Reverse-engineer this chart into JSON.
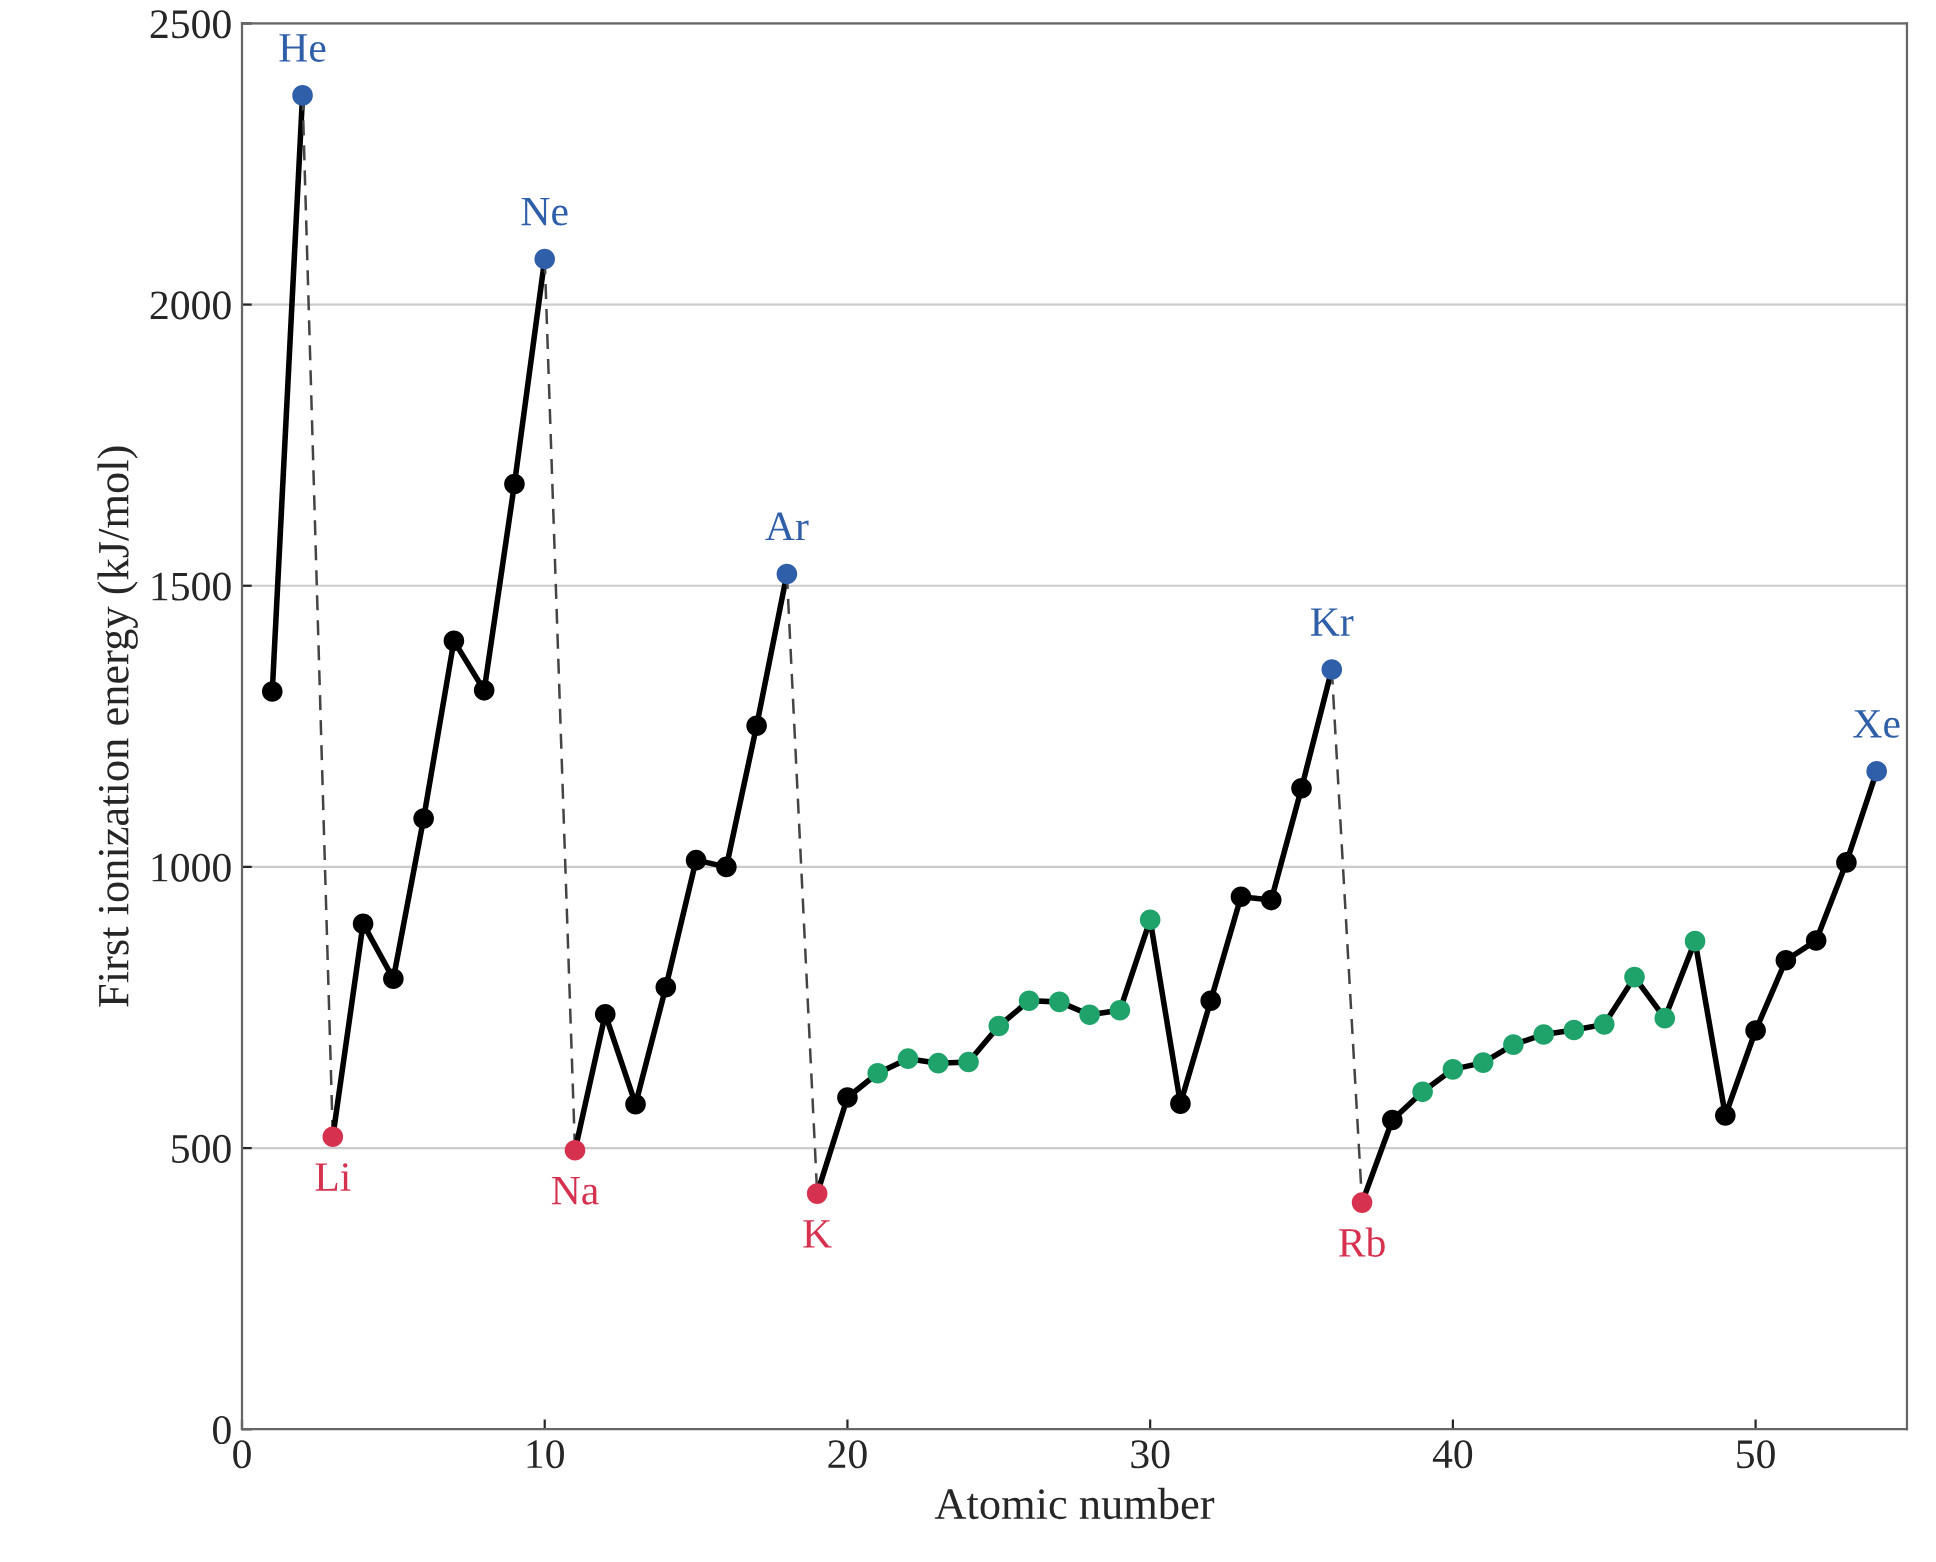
{
  "chart_data": {
    "type": "line",
    "xlabel": "Atomic number",
    "ylabel": "First ionization energy (kJ/mol)",
    "xlim": [
      0,
      55
    ],
    "xticks": [
      0,
      10,
      20,
      30,
      40,
      50
    ],
    "ylim": [
      0,
      2500
    ],
    "yticks": [
      0,
      500,
      1000,
      1500,
      2000,
      2500
    ],
    "grid": "y",
    "marker": "circle",
    "series": [
      {
        "color": "#000000",
        "x": [
          1,
          2
        ],
        "values": [
          1312,
          2372
        ],
        "colors": [
          "#000000",
          "#2e5fa8"
        ]
      },
      {
        "color": "#444444",
        "line_style": "dashed",
        "marker": "none",
        "x": [
          2,
          3
        ],
        "values": [
          2372,
          520
        ]
      },
      {
        "color": "#000000",
        "x": [
          3,
          4,
          5,
          6,
          7,
          8,
          9,
          10
        ],
        "values": [
          520,
          899,
          801,
          1086,
          1402,
          1314,
          1681,
          2081
        ],
        "colors": [
          "#d6324f",
          "#000000",
          "#000000",
          "#000000",
          "#000000",
          "#000000",
          "#000000",
          "#2e5fa8"
        ]
      },
      {
        "color": "#444444",
        "line_style": "dashed",
        "marker": "none",
        "x": [
          10,
          11
        ],
        "values": [
          2081,
          496
        ]
      },
      {
        "color": "#000000",
        "x": [
          11,
          12,
          13,
          14,
          15,
          16,
          17,
          18
        ],
        "values": [
          496,
          738,
          578,
          786,
          1012,
          1000,
          1251,
          1521
        ],
        "colors": [
          "#d6324f",
          "#000000",
          "#000000",
          "#000000",
          "#000000",
          "#000000",
          "#000000",
          "#2e5fa8"
        ]
      },
      {
        "color": "#444444",
        "line_style": "dashed",
        "marker": "none",
        "x": [
          18,
          19
        ],
        "values": [
          1521,
          419
        ]
      },
      {
        "color": "#000000",
        "x": [
          19,
          20,
          21,
          22,
          23,
          24,
          25,
          26,
          27,
          28,
          29,
          30,
          31,
          32,
          33,
          34,
          35,
          36
        ],
        "values": [
          419,
          590,
          633,
          659,
          651,
          653,
          717,
          762,
          760,
          737,
          745,
          906,
          579,
          762,
          947,
          941,
          1140,
          1351
        ],
        "colors": [
          "#d6324f",
          "#000000",
          "#1fa36b",
          "#1fa36b",
          "#1fa36b",
          "#1fa36b",
          "#1fa36b",
          "#1fa36b",
          "#1fa36b",
          "#1fa36b",
          "#1fa36b",
          "#1fa36b",
          "#000000",
          "#000000",
          "#000000",
          "#000000",
          "#000000",
          "#2e5fa8"
        ]
      },
      {
        "color": "#444444",
        "line_style": "dashed",
        "marker": "none",
        "x": [
          36,
          37
        ],
        "values": [
          1351,
          403
        ]
      },
      {
        "color": "#000000",
        "x": [
          37,
          38,
          39,
          40,
          41,
          42,
          43,
          44,
          45,
          46,
          47,
          48,
          49,
          50,
          51,
          52,
          53,
          54
        ],
        "values": [
          403,
          550,
          600,
          640,
          652,
          684,
          702,
          710,
          720,
          804,
          731,
          868,
          558,
          709,
          834,
          869,
          1008,
          1170
        ],
        "colors": [
          "#d6324f",
          "#000000",
          "#1fa36b",
          "#1fa36b",
          "#1fa36b",
          "#1fa36b",
          "#1fa36b",
          "#1fa36b",
          "#1fa36b",
          "#1fa36b",
          "#1fa36b",
          "#1fa36b",
          "#000000",
          "#000000",
          "#000000",
          "#000000",
          "#000000",
          "#2e5fa8"
        ]
      }
    ],
    "annotations": [
      {
        "text": "He",
        "x": 2,
        "y": 2372
      },
      {
        "text": "Ne",
        "x": 10,
        "y": 2081
      },
      {
        "text": "Ar",
        "x": 18,
        "y": 1521
      },
      {
        "text": "Kr",
        "x": 36,
        "y": 1351
      },
      {
        "text": "Xe",
        "x": 54,
        "y": 1170
      },
      {
        "text": "Li",
        "x": 3,
        "y": 520
      },
      {
        "text": "Na",
        "x": 11,
        "y": 496
      },
      {
        "text": "K",
        "x": 19,
        "y": 419
      },
      {
        "text": "Rb",
        "x": 37,
        "y": 403
      }
    ]
  }
}
